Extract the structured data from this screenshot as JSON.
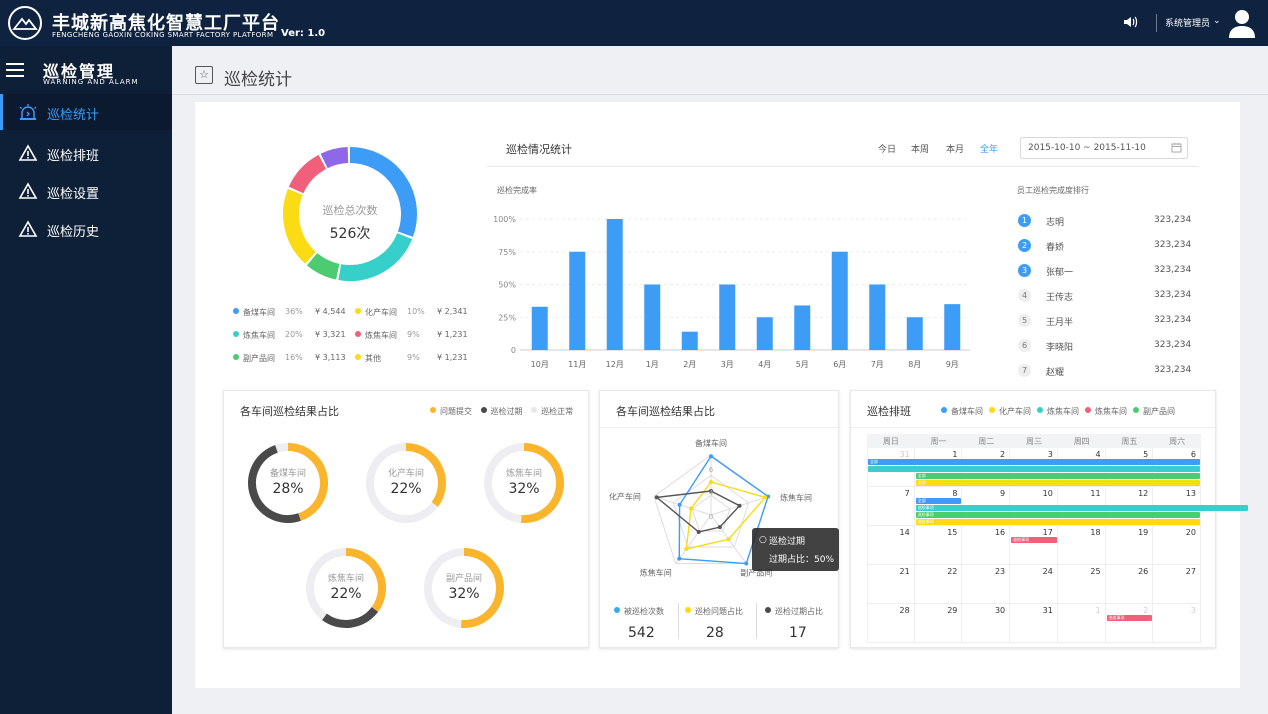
{
  "header": {
    "title": "丰城新高焦化智慧工厂平台",
    "subtitle": "FENGCHENG GAOXIN COKING SMART FACTORY PLATFORM",
    "version": "Ver: 1.0",
    "user": "系统管理员"
  },
  "sidebar": {
    "title": "巡检管理",
    "subtitle": "WARNING AND ALARM",
    "items": [
      {
        "label": "巡检统计"
      },
      {
        "label": "巡检排班"
      },
      {
        "label": "巡检设置"
      },
      {
        "label": "巡检历史"
      }
    ]
  },
  "page": {
    "title": "巡检统计"
  },
  "colors": {
    "blue": "#3d9cf5",
    "cyan": "#36cfc9",
    "yellow": "#fadb14",
    "red": "#f0607a",
    "green": "#4ccb70",
    "purple": "#8f68e8",
    "orange": "#fbb52c",
    "dark": "#4a4a4a",
    "gray": "#eeeef2"
  },
  "donut": {
    "label": "巡检总次数",
    "value": "526次",
    "legend": [
      {
        "name": "备煤车间",
        "pct": "36%",
        "amt": "¥ 4,544"
      },
      {
        "name": "化产车间",
        "pct": "10%",
        "amt": "¥ 2,341"
      },
      {
        "name": "炼焦车间",
        "pct": "20%",
        "amt": "¥ 3,321"
      },
      {
        "name": "炼焦车间",
        "pct": "9%",
        "amt": "¥ 1,231"
      },
      {
        "name": "副产品间",
        "pct": "16%",
        "amt": "¥ 3,113"
      },
      {
        "name": "其他",
        "pct": "9%",
        "amt": "¥ 1,231"
      }
    ]
  },
  "stats": {
    "title": "巡检情况统计",
    "filters": [
      "今日",
      "本周",
      "本月",
      "全年"
    ],
    "date_range": "2015-10-10 ~ 2015-11-10",
    "chart_title": "巡检完成率",
    "ranking_title": "员工巡检完成度排行",
    "ranking": [
      {
        "rank": "1",
        "name": "志明",
        "value": "323,234"
      },
      {
        "rank": "2",
        "name": "春娇",
        "value": "323,234"
      },
      {
        "rank": "3",
        "name": "张郁一",
        "value": "323,234"
      },
      {
        "rank": "4",
        "name": "王传志",
        "value": "323,234"
      },
      {
        "rank": "5",
        "name": "王月半",
        "value": "323,234"
      },
      {
        "rank": "6",
        "name": "李晓阳",
        "value": "323,234"
      },
      {
        "rank": "7",
        "name": "赵耀",
        "value": "323,234"
      }
    ]
  },
  "chart_data": {
    "type": "bar",
    "title": "巡检完成率",
    "categories": [
      "10月",
      "11月",
      "12月",
      "1月",
      "2月",
      "3月",
      "4月",
      "5月",
      "6月",
      "7月",
      "8月",
      "9月"
    ],
    "values": [
      33,
      75,
      100,
      50,
      14,
      50,
      25,
      34,
      75,
      50,
      25,
      35
    ],
    "ylim": [
      0,
      100
    ],
    "yticks": [
      "0",
      "25%",
      "50%",
      "75%",
      "100%"
    ]
  },
  "results": {
    "title": "各车间巡检结果占比",
    "legend": [
      "问题提交",
      "巡检过期",
      "巡检正常"
    ],
    "rings": [
      {
        "name": "备煤车间",
        "pct": "28%",
        "value": 0.28
      },
      {
        "name": "化产车间",
        "pct": "22%",
        "value": 0.22
      },
      {
        "name": "炼焦车间",
        "pct": "32%",
        "value": 0.32
      },
      {
        "name": "炼焦车间",
        "pct": "22%",
        "value": 0.22
      },
      {
        "name": "副产品间",
        "pct": "32%",
        "value": 0.32
      }
    ]
  },
  "radar": {
    "title": "各车间巡检结果占比",
    "axes": [
      "备煤车间",
      "炼焦车间",
      "副产品间",
      "炼焦车间",
      "化产车间"
    ],
    "ticks": [
      "6",
      "4",
      "0"
    ],
    "tooltip_title": "巡检过期",
    "tooltip_text": "过期占比：50%",
    "summary": [
      {
        "label": "被巡检次数",
        "value": "542"
      },
      {
        "label": "巡检问题占比",
        "value": "28"
      },
      {
        "label": "巡检过期占比",
        "value": "17"
      }
    ]
  },
  "schedule": {
    "title": "巡检排班",
    "legend": [
      "备煤车间",
      "化产车间",
      "炼焦车间",
      "炼焦车间",
      "副产品间"
    ],
    "weekdays": [
      "周日",
      "周一",
      "周二",
      "周三",
      "周四",
      "周五",
      "周六"
    ],
    "days": [
      "31",
      "1",
      "2",
      "3",
      "4",
      "5",
      "6",
      "7",
      "8",
      "9",
      "10",
      "11",
      "12",
      "13",
      "14",
      "15",
      "16",
      "17",
      "18",
      "19",
      "20",
      "21",
      "22",
      "23",
      "24",
      "25",
      "26",
      "27",
      "28",
      "29",
      "30",
      "31",
      "1",
      "2",
      "3"
    ],
    "bar_labels": {
      "a": "全部",
      "b": "全部",
      "c": "全部",
      "d": "巡检事项",
      "e": "全部",
      "f": "巡检事项"
    }
  }
}
